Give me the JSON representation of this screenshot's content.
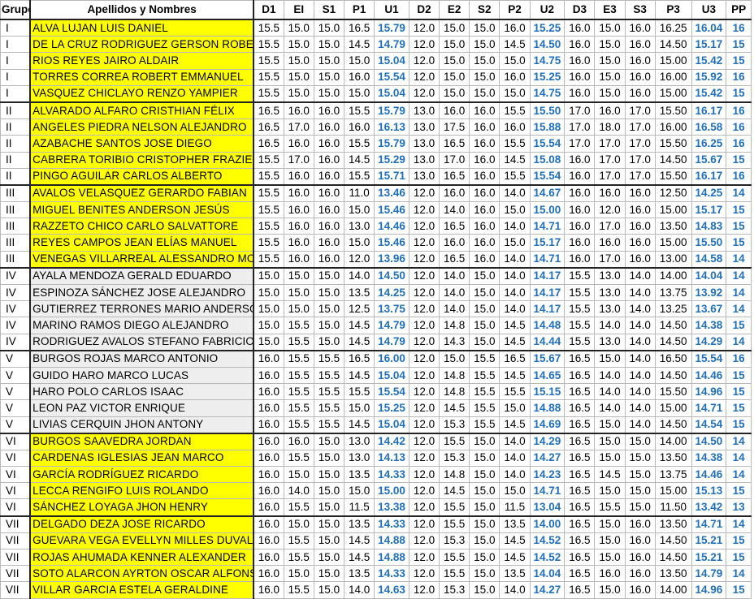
{
  "table": {
    "headers": [
      "Grupo",
      "Apellidos y Nombres",
      "D1",
      "EI",
      "S1",
      "P1",
      "U1",
      "D2",
      "E2",
      "S2",
      "P2",
      "U2",
      "D3",
      "E3",
      "S3",
      "P3",
      "U3",
      "PP"
    ],
    "rows": [
      {
        "grupo": "I",
        "name": "ALVA LUJAN LUIS DANIEL",
        "fill": "yellow",
        "vals": [
          "15.5",
          "15.0",
          "15.0",
          "16.5",
          "15.79",
          "12.0",
          "15.0",
          "15.0",
          "16.0",
          "15.25",
          "16.0",
          "15.0",
          "16.0",
          "16.25",
          "16.04",
          "16"
        ]
      },
      {
        "grupo": "I",
        "name": "DE LA CRUZ RODRIGUEZ GERSON ROBERTH",
        "fill": "yellow",
        "vals": [
          "15.5",
          "15.0",
          "15.0",
          "14.5",
          "14.79",
          "12.0",
          "15.0",
          "15.0",
          "14.5",
          "14.50",
          "16.0",
          "15.0",
          "16.0",
          "14.50",
          "15.17",
          "15"
        ]
      },
      {
        "grupo": "I",
        "name": "RIOS REYES JAIRO ALDAIR",
        "fill": "yellow",
        "vals": [
          "15.5",
          "15.0",
          "15.0",
          "15.0",
          "15.04",
          "12.0",
          "15.0",
          "15.0",
          "15.0",
          "14.75",
          "16.0",
          "15.0",
          "16.0",
          "15.00",
          "15.42",
          "15"
        ]
      },
      {
        "grupo": "I",
        "name": "TORRES CORREA ROBERT EMMANUEL",
        "fill": "yellow",
        "vals": [
          "15.5",
          "15.0",
          "15.0",
          "16.0",
          "15.54",
          "12.0",
          "15.0",
          "15.0",
          "16.0",
          "15.25",
          "16.0",
          "15.0",
          "16.0",
          "16.00",
          "15.92",
          "16"
        ]
      },
      {
        "grupo": "I",
        "name": "VASQUEZ CHICLAYO RENZO YAMPIER",
        "fill": "yellow",
        "vals": [
          "15.5",
          "15.0",
          "15.0",
          "15.0",
          "15.04",
          "12.0",
          "15.0",
          "15.0",
          "15.0",
          "14.75",
          "16.0",
          "15.0",
          "16.0",
          "15.00",
          "15.42",
          "15"
        ]
      },
      {
        "grupo": "II",
        "name": "ALVARADO ALFARO CRISTHIAN FÉLIX",
        "fill": "yellow",
        "vals": [
          "16.5",
          "16.0",
          "16.0",
          "15.5",
          "15.79",
          "13.0",
          "16.0",
          "16.0",
          "15.5",
          "15.50",
          "17.0",
          "16.0",
          "17.0",
          "15.50",
          "16.17",
          "16"
        ]
      },
      {
        "grupo": "II",
        "name": "ANGELES PIEDRA NELSON ALEJANDRO",
        "fill": "yellow",
        "vals": [
          "16.5",
          "17.0",
          "16.0",
          "16.0",
          "16.13",
          "13.0",
          "17.5",
          "16.0",
          "16.0",
          "15.88",
          "17.0",
          "18.0",
          "17.0",
          "16.00",
          "16.58",
          "16"
        ]
      },
      {
        "grupo": "II",
        "name": "AZABACHE SANTOS JOSE DIEGO",
        "fill": "yellow",
        "vals": [
          "16.5",
          "16.0",
          "16.0",
          "15.5",
          "15.79",
          "13.0",
          "16.5",
          "16.0",
          "15.5",
          "15.54",
          "17.0",
          "17.0",
          "17.0",
          "15.50",
          "16.25",
          "16"
        ]
      },
      {
        "grupo": "II",
        "name": "CABRERA TORIBIO CRISTOPHER FRAZIER",
        "fill": "yellow",
        "vals": [
          "15.5",
          "17.0",
          "16.0",
          "14.5",
          "15.29",
          "13.0",
          "17.0",
          "16.0",
          "14.5",
          "15.08",
          "16.0",
          "17.0",
          "17.0",
          "14.50",
          "15.67",
          "15"
        ]
      },
      {
        "grupo": "II",
        "name": "PINGO AGUILAR CARLOS ALBERTO",
        "fill": "yellow",
        "vals": [
          "15.5",
          "16.0",
          "16.0",
          "15.5",
          "15.71",
          "13.0",
          "16.5",
          "16.0",
          "15.5",
          "15.54",
          "16.0",
          "17.0",
          "17.0",
          "15.50",
          "16.17",
          "16"
        ]
      },
      {
        "grupo": "III",
        "name": "AVALOS VELASQUEZ GERARDO FABIAN",
        "fill": "yellow",
        "vals": [
          "15.5",
          "16.0",
          "16.0",
          "11.0",
          "13.46",
          "12.0",
          "16.0",
          "16.0",
          "14.0",
          "14.67",
          "16.0",
          "16.0",
          "16.0",
          "12.50",
          "14.25",
          "14"
        ]
      },
      {
        "grupo": "III",
        "name": "MIGUEL BENITES ANDERSON JESÚS",
        "fill": "yellow",
        "vals": [
          "15.5",
          "16.0",
          "16.0",
          "15.0",
          "15.46",
          "12.0",
          "14.0",
          "16.0",
          "15.0",
          "15.00",
          "16.0",
          "12.0",
          "16.0",
          "15.00",
          "15.17",
          "15"
        ]
      },
      {
        "grupo": "III",
        "name": "RAZZETO CHICO CARLO SALVATTORE",
        "fill": "yellow",
        "vals": [
          "15.5",
          "16.0",
          "16.0",
          "13.0",
          "14.46",
          "12.0",
          "16.5",
          "16.0",
          "14.0",
          "14.71",
          "16.0",
          "17.0",
          "16.0",
          "13.50",
          "14.83",
          "15"
        ]
      },
      {
        "grupo": "III",
        "name": "REYES CAMPOS JEAN ELÍAS MANUEL",
        "fill": "yellow",
        "vals": [
          "15.5",
          "16.0",
          "16.0",
          "15.0",
          "15.46",
          "12.0",
          "16.0",
          "16.0",
          "15.0",
          "15.17",
          "16.0",
          "16.0",
          "16.0",
          "15.00",
          "15.50",
          "15"
        ]
      },
      {
        "grupo": "III",
        "name": "VENEGAS VILLARREAL ALESSANDRO MOISÉS",
        "fill": "yellow",
        "vals": [
          "15.5",
          "16.0",
          "16.0",
          "12.0",
          "13.96",
          "12.0",
          "16.5",
          "16.0",
          "14.0",
          "14.71",
          "16.0",
          "17.0",
          "16.0",
          "13.00",
          "14.58",
          "14"
        ]
      },
      {
        "grupo": "IV",
        "name": "AYALA MENDOZA GERALD EDUARDO",
        "fill": "gray",
        "vals": [
          "15.0",
          "15.0",
          "15.0",
          "14.0",
          "14.50",
          "12.0",
          "14.0",
          "15.0",
          "14.0",
          "14.17",
          "15.5",
          "13.0",
          "14.0",
          "14.00",
          "14.04",
          "14"
        ]
      },
      {
        "grupo": "IV",
        "name": "ESPINOZA SÁNCHEZ JOSE ALEJANDRO",
        "fill": "gray",
        "vals": [
          "15.0",
          "15.0",
          "15.0",
          "13.5",
          "14.25",
          "12.0",
          "14.0",
          "15.0",
          "14.0",
          "14.17",
          "15.5",
          "13.0",
          "14.0",
          "13.75",
          "13.92",
          "14"
        ]
      },
      {
        "grupo": "IV",
        "name": "GUTIERREZ TERRONES MARIO ANDERSON",
        "fill": "gray",
        "vals": [
          "15.0",
          "15.0",
          "15.0",
          "12.5",
          "13.75",
          "12.0",
          "14.0",
          "15.0",
          "14.0",
          "14.17",
          "15.5",
          "13.0",
          "14.0",
          "13.25",
          "13.67",
          "14"
        ]
      },
      {
        "grupo": "IV",
        "name": "MARINO RAMOS DIEGO ALEJANDRO",
        "fill": "gray",
        "vals": [
          "15.0",
          "15.5",
          "15.0",
          "14.5",
          "14.79",
          "12.0",
          "14.8",
          "15.0",
          "14.5",
          "14.48",
          "15.5",
          "14.0",
          "14.0",
          "14.50",
          "14.38",
          "15"
        ]
      },
      {
        "grupo": "IV",
        "name": "RODRIGUEZ AVALOS STEFANO FABRICIO",
        "fill": "gray",
        "vals": [
          "15.0",
          "15.5",
          "15.0",
          "14.5",
          "14.79",
          "12.0",
          "14.3",
          "15.0",
          "14.5",
          "14.44",
          "15.5",
          "13.0",
          "14.0",
          "14.50",
          "14.29",
          "14"
        ]
      },
      {
        "grupo": "V",
        "name": "BURGOS ROJAS MARCO ANTONIO",
        "fill": "gray",
        "vals": [
          "16.0",
          "15.5",
          "15.5",
          "16.5",
          "16.00",
          "12.0",
          "15.0",
          "15.5",
          "16.5",
          "15.67",
          "16.5",
          "15.0",
          "14.0",
          "16.50",
          "15.54",
          "16"
        ]
      },
      {
        "grupo": "V",
        "name": "GUIDO HARO MARCO LUCAS",
        "fill": "gray",
        "vals": [
          "16.0",
          "15.5",
          "15.5",
          "14.5",
          "15.04",
          "12.0",
          "14.8",
          "15.5",
          "14.5",
          "14.65",
          "16.5",
          "14.0",
          "14.0",
          "14.50",
          "14.46",
          "15"
        ]
      },
      {
        "grupo": "V",
        "name": "HARO POLO CARLOS ISAAC",
        "fill": "gray",
        "vals": [
          "16.0",
          "15.5",
          "15.5",
          "15.5",
          "15.54",
          "12.0",
          "14.8",
          "15.5",
          "15.5",
          "15.15",
          "16.5",
          "14.0",
          "14.0",
          "15.50",
          "14.96",
          "15"
        ]
      },
      {
        "grupo": "V",
        "name": "LEON PAZ VICTOR ENRIQUE",
        "fill": "gray",
        "vals": [
          "16.0",
          "15.5",
          "15.5",
          "15.0",
          "15.25",
          "12.0",
          "14.5",
          "15.5",
          "15.0",
          "14.88",
          "16.5",
          "14.0",
          "14.0",
          "15.00",
          "14.71",
          "15"
        ]
      },
      {
        "grupo": "V",
        "name": "LIVIAS CERQUIN JHON ANTONY",
        "fill": "gray",
        "vals": [
          "16.0",
          "15.5",
          "15.5",
          "14.5",
          "15.04",
          "12.0",
          "15.3",
          "15.5",
          "14.5",
          "14.69",
          "16.5",
          "15.0",
          "14.0",
          "14.50",
          "14.54",
          "15"
        ]
      },
      {
        "grupo": "VI",
        "name": "BURGOS SAAVEDRA JORDAN",
        "fill": "yellow",
        "vals": [
          "16.0",
          "16.0",
          "15.0",
          "13.0",
          "14.42",
          "12.0",
          "15.5",
          "15.0",
          "14.0",
          "14.29",
          "16.5",
          "15.0",
          "15.0",
          "14.00",
          "14.50",
          "14"
        ]
      },
      {
        "grupo": "VI",
        "name": "CARDENAS IGLESIAS JEAN MARCO",
        "fill": "yellow",
        "vals": [
          "16.0",
          "15.5",
          "15.0",
          "13.0",
          "14.13",
          "12.0",
          "15.3",
          "15.0",
          "14.0",
          "14.27",
          "16.5",
          "15.0",
          "15.0",
          "13.50",
          "14.38",
          "14"
        ]
      },
      {
        "grupo": "VI",
        "name": "GARCÍA RODRÍGUEZ RICARDO",
        "fill": "yellow",
        "vals": [
          "16.0",
          "15.0",
          "15.0",
          "13.5",
          "14.33",
          "12.0",
          "14.8",
          "15.0",
          "14.0",
          "14.23",
          "16.5",
          "14.5",
          "15.0",
          "13.75",
          "14.46",
          "14"
        ]
      },
      {
        "grupo": "VI",
        "name": "LECCA RENGIFO LUIS ROLANDO",
        "fill": "yellow",
        "vals": [
          "16.0",
          "14.0",
          "15.0",
          "15.0",
          "15.00",
          "12.0",
          "14.5",
          "15.0",
          "15.0",
          "14.71",
          "16.5",
          "15.0",
          "15.0",
          "15.00",
          "15.13",
          "15"
        ]
      },
      {
        "grupo": "VI",
        "name": "SÁNCHEZ LOYAGA JHON HENRY",
        "fill": "yellow",
        "vals": [
          "16.0",
          "15.5",
          "15.0",
          "11.5",
          "13.38",
          "12.0",
          "15.5",
          "15.0",
          "11.5",
          "13.04",
          "16.5",
          "15.5",
          "15.0",
          "11.50",
          "13.42",
          "13"
        ]
      },
      {
        "grupo": "VII",
        "name": "DELGADO DEZA JOSE RICARDO",
        "fill": "yellow",
        "vals": [
          "16.0",
          "15.0",
          "15.0",
          "13.5",
          "14.33",
          "12.0",
          "15.5",
          "15.0",
          "13.5",
          "14.00",
          "16.5",
          "15.0",
          "16.0",
          "13.50",
          "14.71",
          "14"
        ]
      },
      {
        "grupo": "VII",
        "name": "GUEVARA VEGA EVELLYN MILLES DUVAL",
        "fill": "yellow",
        "vals": [
          "16.0",
          "15.5",
          "15.0",
          "14.5",
          "14.88",
          "12.0",
          "15.3",
          "15.0",
          "14.5",
          "14.52",
          "16.5",
          "15.0",
          "16.0",
          "14.50",
          "15.21",
          "15"
        ]
      },
      {
        "grupo": "VII",
        "name": "ROJAS AHUMADA KENNER ALEXANDER",
        "fill": "yellow",
        "vals": [
          "16.0",
          "15.5",
          "15.0",
          "14.5",
          "14.88",
          "12.0",
          "15.5",
          "15.0",
          "14.5",
          "14.52",
          "16.5",
          "15.0",
          "16.0",
          "14.50",
          "15.21",
          "15"
        ]
      },
      {
        "grupo": "VII",
        "name": "SOTO ALARCON AYRTON OSCAR ALFONSO",
        "fill": "yellow",
        "vals": [
          "16.0",
          "15.0",
          "15.0",
          "13.5",
          "14.33",
          "12.0",
          "15.5",
          "15.0",
          "13.5",
          "14.04",
          "16.5",
          "16.0",
          "16.0",
          "13.50",
          "14.79",
          "14"
        ]
      },
      {
        "grupo": "VII",
        "name": "VILLAR GARCIA ESTELA GERALDINE",
        "fill": "yellow",
        "vals": [
          "16.0",
          "15.5",
          "15.0",
          "14.0",
          "14.63",
          "12.0",
          "15.3",
          "15.0",
          "14.0",
          "14.27",
          "16.5",
          "15.0",
          "16.0",
          "14.00",
          "14.96",
          "15"
        ]
      }
    ]
  },
  "colors": {
    "highlight_yellow": "#ffff00",
    "highlight_gray": "#eeeeee",
    "average_blue": "#1f6fbf"
  }
}
